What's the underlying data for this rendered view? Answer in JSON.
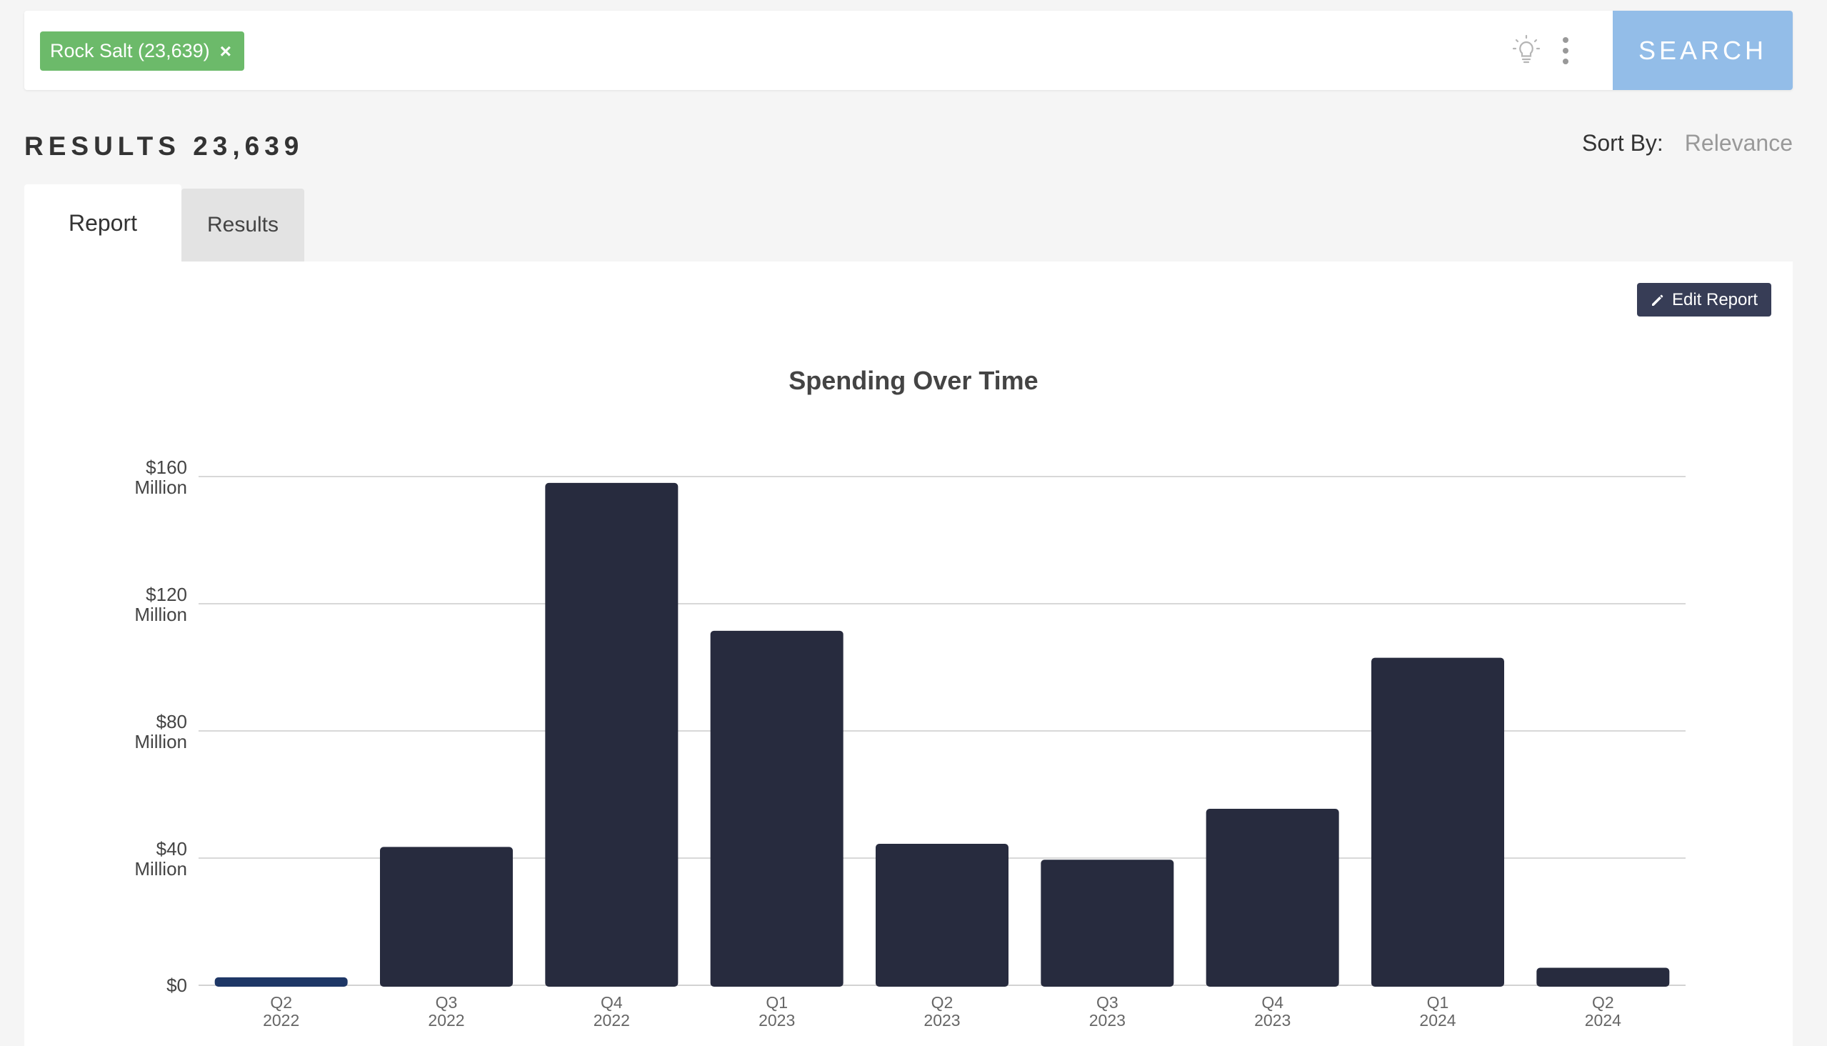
{
  "search": {
    "chip_label": "Rock Salt (23,639)",
    "chip_close": "×",
    "button_label": "SEARCH",
    "icons": [
      "lightbulb-icon",
      "more-vertical-icon",
      "close-icon"
    ]
  },
  "results": {
    "count_label": "RESULTS 23,639",
    "sort_label": "Sort By:",
    "sort_value": "Relevance"
  },
  "tabs": {
    "report": "Report",
    "results": "Results"
  },
  "report": {
    "edit_label": "Edit Report"
  },
  "colors": {
    "bar": "#272b3e",
    "bar_highlight": "#1e3766",
    "chip": "#6cba6a",
    "search_button": "#93bde8"
  },
  "chart_data": {
    "type": "bar",
    "title": "Spending Over Time",
    "xlabel": "",
    "ylabel": "",
    "ylim": [
      0,
      160000000
    ],
    "grid": true,
    "yticks": [
      {
        "value": 0,
        "line1": "$0",
        "line2": ""
      },
      {
        "value": 40000000,
        "line1": "$40",
        "line2": "Million"
      },
      {
        "value": 80000000,
        "line1": "$80",
        "line2": "Million"
      },
      {
        "value": 120000000,
        "line1": "$120",
        "line2": "Million"
      },
      {
        "value": 160000000,
        "line1": "$160",
        "line2": "Million"
      }
    ],
    "categories": [
      {
        "q": "Q2",
        "y": "2022"
      },
      {
        "q": "Q3",
        "y": "2022"
      },
      {
        "q": "Q4",
        "y": "2022"
      },
      {
        "q": "Q1",
        "y": "2023"
      },
      {
        "q": "Q2",
        "y": "2023"
      },
      {
        "q": "Q3",
        "y": "2023"
      },
      {
        "q": "Q4",
        "y": "2023"
      },
      {
        "q": "Q1",
        "y": "2024"
      },
      {
        "q": "Q2",
        "y": "2024"
      }
    ],
    "values": [
      2500000,
      43500000,
      158000000,
      111500000,
      44500000,
      39500000,
      55500000,
      103000000,
      5500000
    ]
  }
}
